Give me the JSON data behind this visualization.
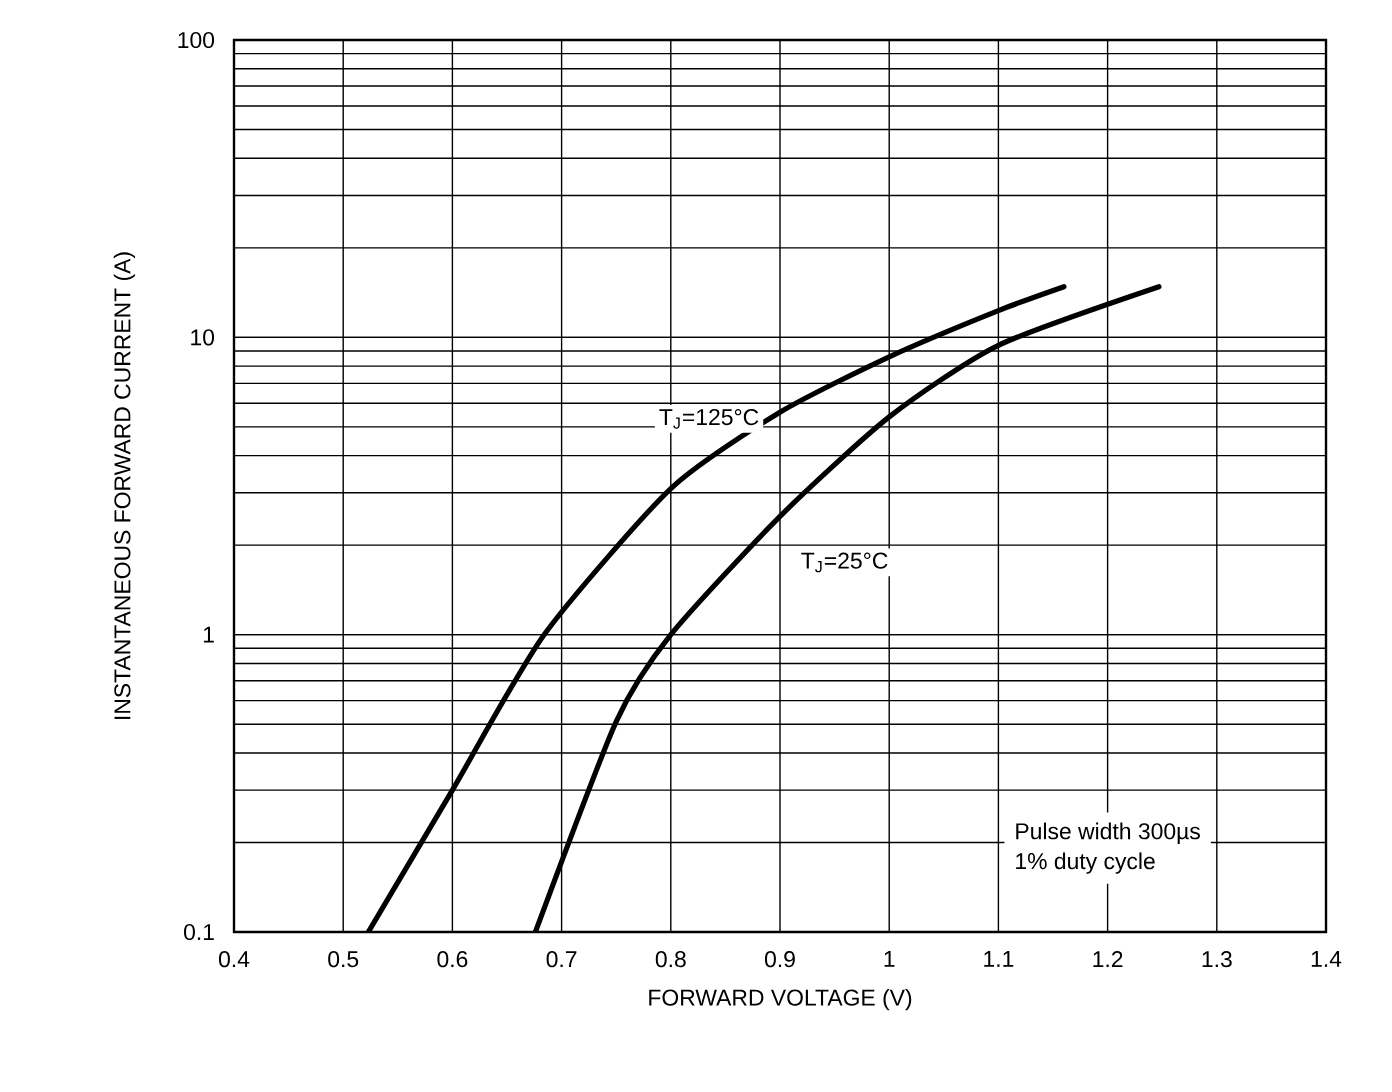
{
  "chart_data": {
    "type": "line",
    "xlabel": "FORWARD VOLTAGE (V)",
    "ylabel": "INSTANTANEOUS FORWARD CURRENT (A)",
    "log": "y",
    "grid": true,
    "xlim": [
      0.4,
      1.4
    ],
    "xticks": [
      0.4,
      0.5,
      0.6,
      0.7,
      0.8,
      0.9,
      1,
      1.1,
      1.2,
      1.3,
      1.4
    ],
    "ylim": [
      0.1,
      100
    ],
    "yticks": [
      0.1,
      1,
      10,
      100
    ],
    "series": [
      {
        "name": "T$_{J}$=125°C",
        "color": "#000000",
        "x": [
          0.523,
          0.6,
          0.684,
          0.8,
          0.9,
          1.0,
          1.1,
          1.16
        ],
        "values": [
          0.1,
          0.3,
          1.0,
          3.1,
          5.6,
          8.6,
          12.3,
          14.8
        ]
      },
      {
        "name": "T$_{J}$=25°C",
        "color": "#000000",
        "x": [
          0.676,
          0.75,
          0.8,
          0.9,
          1.0,
          1.1,
          1.247
        ],
        "values": [
          0.1,
          0.51,
          1.0,
          2.5,
          5.4,
          9.4,
          14.8
        ]
      }
    ],
    "annotations": [
      "Pulse width 300µs",
      "1% duty cycle"
    ]
  }
}
